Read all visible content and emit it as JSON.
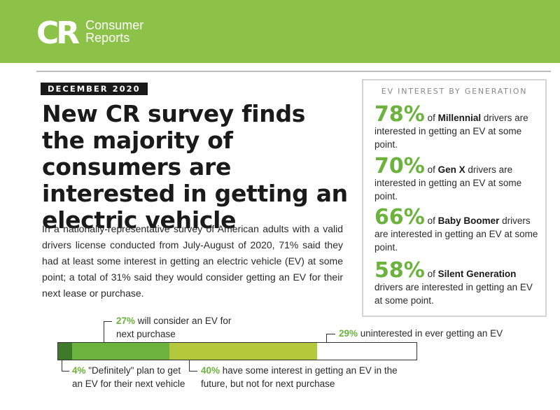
{
  "brand": {
    "logo_mark": "CR",
    "logo_line1": "Consumer",
    "logo_line2": "Reports"
  },
  "date_badge": "DECEMBER 2020",
  "headline": "New CR survey finds the majority of consumers are interested in getting an electric vehicle",
  "intro": "In a nationally-representative survey of American adults with a valid drivers license conducted from July-August of 2020, 71% said they had at least some interest in getting an electric vehicle (EV) at some point; a total of 31% said they would consider getting an EV for their next lease or purchase.",
  "generation_box": {
    "title": "EV INTEREST BY GENERATION",
    "stats": [
      {
        "pct": "78%",
        "pre": " of ",
        "group": "Millennial",
        "post": " drivers are interested in getting an EV at some point."
      },
      {
        "pct": "70%",
        "pre": " of ",
        "group": "Gen X",
        "post": " drivers are interested in getting an EV at some point."
      },
      {
        "pct": "66%",
        "pre": " of ",
        "group": "Baby Boomer",
        "post": " drivers are interested in getting an EV at some point."
      },
      {
        "pct": "58%",
        "pre": " of ",
        "group": "Silent Generation",
        "post": " drivers are interested in getting an EV at some point."
      }
    ]
  },
  "breakdown": {
    "segments": [
      {
        "pct": "4%",
        "text": " \"Definitely\" plan to get an EV for their next vehicle",
        "value": 4,
        "color": "#3e7a2a"
      },
      {
        "pct": "27%",
        "text": " will consider an EV for next purchase",
        "value": 27,
        "color": "#6cb33e"
      },
      {
        "pct": "40%",
        "text": " have some interest in getting an EV in the future, but not for next purchase",
        "value": 40,
        "color": "#b3c83a"
      },
      {
        "pct": "29%",
        "text": " uninterested in ever getting an EV",
        "value": 29,
        "color": "#ffffff"
      }
    ]
  },
  "colors": {
    "brand_green": "#8dc248",
    "accent_green": "#6cb33e",
    "dark_green": "#3e7a2a",
    "olive": "#b3c83a"
  }
}
